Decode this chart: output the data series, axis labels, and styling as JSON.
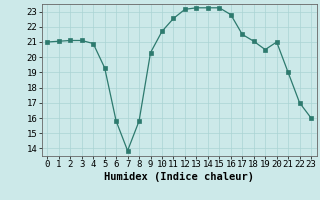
{
  "x": [
    0,
    1,
    2,
    3,
    4,
    5,
    6,
    7,
    8,
    9,
    10,
    11,
    12,
    13,
    14,
    15,
    16,
    17,
    18,
    19,
    20,
    21,
    22,
    23
  ],
  "y": [
    21,
    21.05,
    21.1,
    21.1,
    20.9,
    19.3,
    15.8,
    13.85,
    15.8,
    20.3,
    21.7,
    22.55,
    23.15,
    23.25,
    23.25,
    23.25,
    22.8,
    21.5,
    21.05,
    20.5,
    21.0,
    19.0,
    17.0,
    16.0
  ],
  "line_color": "#2d7a6e",
  "marker": "s",
  "marker_size": 2.5,
  "bg_color": "#cce9e9",
  "grid_color": "#aad4d4",
  "xlabel": "Humidex (Indice chaleur)",
  "xlim": [
    -0.5,
    23.5
  ],
  "ylim": [
    13.5,
    23.5
  ],
  "yticks": [
    14,
    15,
    16,
    17,
    18,
    19,
    20,
    21,
    22,
    23
  ],
  "xtick_labels": [
    "0",
    "1",
    "2",
    "3",
    "4",
    "5",
    "6",
    "7",
    "8",
    "9",
    "10",
    "11",
    "12",
    "13",
    "14",
    "15",
    "16",
    "17",
    "18",
    "19",
    "20",
    "21",
    "22",
    "23"
  ],
  "xlabel_fontsize": 7.5,
  "tick_fontsize": 6.5
}
